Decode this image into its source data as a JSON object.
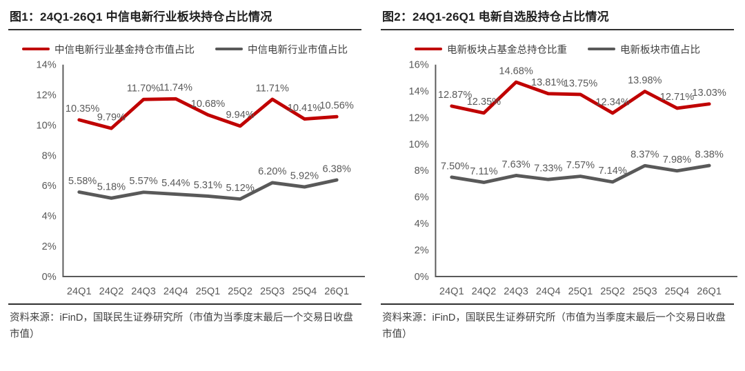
{
  "figures": [
    {
      "title": "图1：24Q1-26Q1 中信电新行业板块持仓占比情况",
      "source": "资料来源：iFinD，国联民生证券研究所（市值为当季度末最后一个交易日收盘市值）",
      "chart_data": {
        "type": "line",
        "categories": [
          "24Q1",
          "24Q2",
          "24Q3",
          "24Q4",
          "25Q1",
          "25Q2",
          "25Q3",
          "25Q4",
          "26Q1"
        ],
        "series": [
          {
            "name": "中信电新行业基金持仓市值占比",
            "color": "#c00000",
            "values": [
              10.35,
              9.79,
              11.7,
              11.74,
              10.68,
              9.94,
              11.71,
              10.41,
              10.56
            ],
            "labels": [
              "10.35%",
              "9.79%",
              "11.70%",
              "11.74%",
              "10.68%",
              "9.94%",
              "11.71%",
              "10.41%",
              "10.56%"
            ]
          },
          {
            "name": "中信电新行业市值占比",
            "color": "#595959",
            "values": [
              5.58,
              5.18,
              5.57,
              5.44,
              5.31,
              5.12,
              6.2,
              5.92,
              6.38
            ],
            "labels": [
              "5.58%",
              "5.18%",
              "5.57%",
              "5.44%",
              "5.31%",
              "5.12%",
              "6.20%",
              "5.92%",
              "6.38%"
            ]
          }
        ],
        "ylim": [
          0,
          14
        ],
        "ytick_step": 2,
        "ytick_labels": [
          "0%",
          "2%",
          "4%",
          "6%",
          "8%",
          "10%",
          "12%",
          "14%"
        ],
        "grid": false,
        "legend_position": "top",
        "xlabel": "",
        "ylabel": ""
      }
    },
    {
      "title": "图2：24Q1-26Q1 电新自选股持仓占比情况",
      "source": "资料来源：iFinD，国联民生证券研究所（市值为当季度末最后一个交易日收盘市值）",
      "chart_data": {
        "type": "line",
        "categories": [
          "24Q1",
          "24Q2",
          "24Q3",
          "24Q4",
          "25Q1",
          "25Q2",
          "25Q3",
          "25Q4",
          "26Q1"
        ],
        "series": [
          {
            "name": "电新板块占基金总持仓比重",
            "color": "#c00000",
            "values": [
              12.87,
              12.35,
              14.68,
              13.81,
              13.75,
              12.34,
              13.98,
              12.71,
              13.03
            ],
            "labels": [
              "12.87%",
              "12.35%",
              "14.68%",
              "13.81%",
              "13.75%",
              "12.34%",
              "13.98%",
              "12.71%",
              "13.03%"
            ]
          },
          {
            "name": "电新板块市值占比",
            "color": "#595959",
            "values": [
              7.5,
              7.11,
              7.63,
              7.33,
              7.57,
              7.14,
              8.37,
              7.98,
              8.38
            ],
            "labels": [
              "7.50%",
              "7.11%",
              "7.63%",
              "7.33%",
              "7.57%",
              "7.14%",
              "8.37%",
              "7.98%",
              "8.38%"
            ]
          }
        ],
        "ylim": [
          0,
          16
        ],
        "ytick_step": 2,
        "ytick_labels": [
          "0%",
          "2%",
          "4%",
          "6%",
          "8%",
          "10%",
          "12%",
          "14%",
          "16%"
        ],
        "grid": false,
        "legend_position": "top",
        "xlabel": "",
        "ylabel": ""
      }
    }
  ]
}
